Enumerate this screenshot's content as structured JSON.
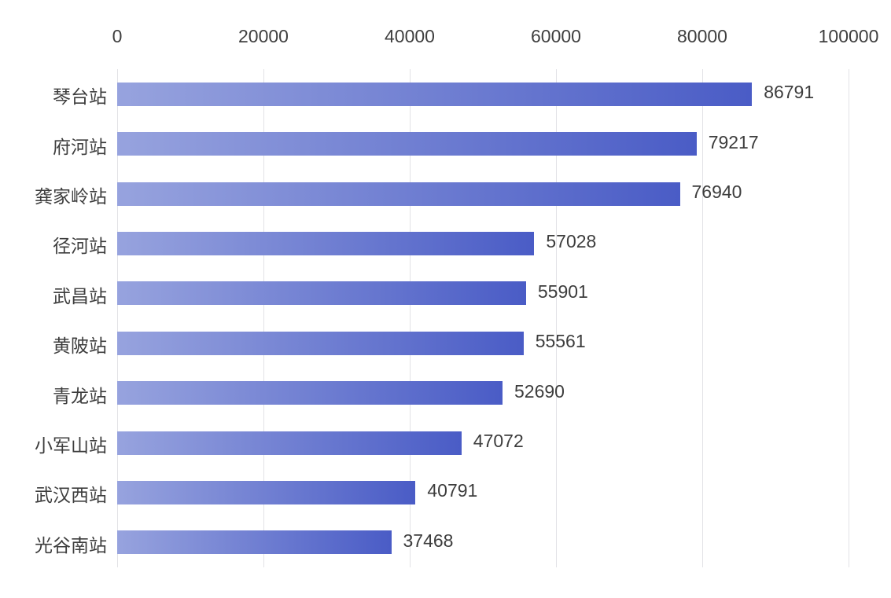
{
  "chart_data": {
    "type": "bar",
    "orientation": "horizontal",
    "title": "",
    "xlabel": "",
    "ylabel": "",
    "categories": [
      "琴台站",
      "府河站",
      "龚家岭站",
      "径河站",
      "武昌站",
      "黄陂站",
      "青龙站",
      "小军山站",
      "武汉西站",
      "光谷南站"
    ],
    "values": [
      86791,
      79217,
      76940,
      57028,
      55901,
      55561,
      52690,
      47072,
      40791,
      37468
    ],
    "value_labels": [
      "86791",
      "79217",
      "76940",
      "57028",
      "55901",
      "55561",
      "52690",
      "47072",
      "40791",
      "37468"
    ],
    "xlim": [
      0,
      100000
    ],
    "x_ticks": [
      0,
      20000,
      40000,
      60000,
      80000,
      100000
    ],
    "x_tick_labels": [
      "0",
      "20000",
      "40000",
      "60000",
      "80000",
      "100000"
    ],
    "x_axis_position": "top",
    "grid": true,
    "legend": "none",
    "colors": {
      "bar_gradient_start": "#97a3de",
      "bar_gradient_end": "#4a5cc6",
      "gridline": "#e2e2e6",
      "text": "#3d3d3d",
      "background": "#ffffff"
    }
  }
}
